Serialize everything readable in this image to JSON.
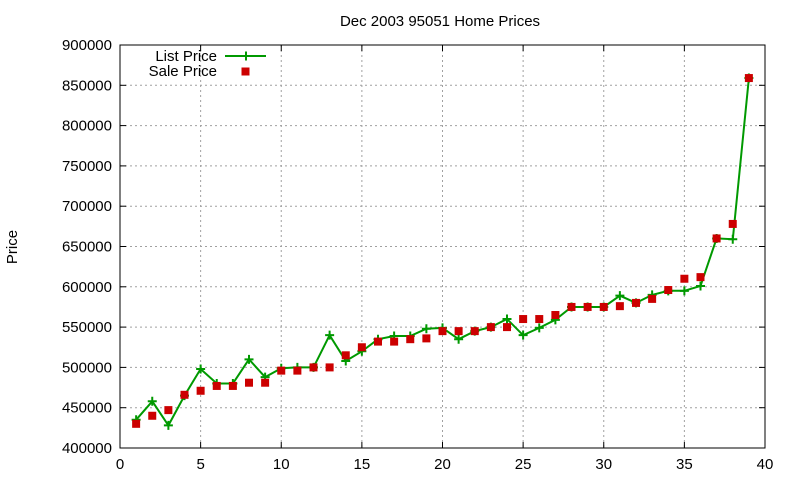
{
  "colors": {
    "list_price": "#009900",
    "sale_price": "#cc0000",
    "grid": "#a0a0a0",
    "axis": "#000000"
  },
  "chart_data": {
    "type": "line",
    "title": "Dec 2003 95051 Home Prices",
    "xlabel": "",
    "ylabel": "Price",
    "xlim": [
      0,
      40
    ],
    "ylim": [
      400000,
      900000
    ],
    "x_ticks": [
      "0",
      "5",
      "10",
      "15",
      "20",
      "25",
      "30",
      "35",
      "40"
    ],
    "y_ticks": [
      "400000",
      "450000",
      "500000",
      "550000",
      "600000",
      "650000",
      "700000",
      "750000",
      "800000",
      "850000",
      "900000"
    ],
    "grid": true,
    "legend_position": "top-left",
    "x": [
      1,
      2,
      3,
      4,
      5,
      6,
      7,
      8,
      9,
      10,
      11,
      12,
      13,
      14,
      15,
      16,
      17,
      18,
      19,
      20,
      21,
      22,
      23,
      24,
      25,
      26,
      27,
      28,
      29,
      30,
      31,
      32,
      33,
      34,
      35,
      36,
      37,
      38,
      39
    ],
    "series": [
      {
        "name": "List Price",
        "style": "line with plus markers",
        "values": [
          435000,
          458000,
          428000,
          465000,
          498000,
          480000,
          480000,
          510000,
          488000,
          499000,
          500000,
          500000,
          540000,
          508000,
          520000,
          535000,
          539000,
          539000,
          548000,
          549000,
          535000,
          545000,
          550000,
          560000,
          540000,
          549000,
          559000,
          575000,
          575000,
          575000,
          589000,
          580000,
          590000,
          595000,
          595000,
          601000,
          660000,
          659000,
          859000
        ]
      },
      {
        "name": "Sale Price",
        "style": "square markers",
        "values": [
          430000,
          440000,
          447000,
          466000,
          471000,
          477000,
          477000,
          481000,
          481000,
          496000,
          496000,
          500000,
          500000,
          515000,
          525000,
          532000,
          532000,
          535000,
          536000,
          545000,
          545000,
          545000,
          550000,
          550000,
          560000,
          560000,
          565000,
          575000,
          575000,
          575000,
          576000,
          580000,
          585000,
          596000,
          610000,
          612000,
          660000,
          678000,
          859000
        ]
      }
    ]
  }
}
